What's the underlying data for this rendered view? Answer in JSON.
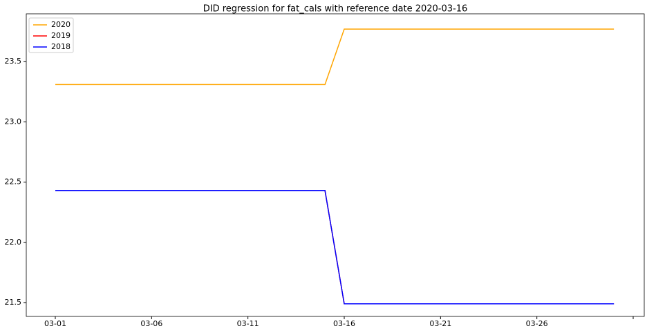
{
  "chart_data": {
    "type": "line",
    "title": "DID regression for fat_cals with reference date 2020-03-16",
    "categories": [
      "03-01",
      null,
      null,
      null,
      null,
      "03-06",
      null,
      null,
      null,
      null,
      "03-11",
      null,
      null,
      null,
      null,
      "03-16",
      null,
      null,
      null,
      null,
      "03-21",
      null,
      null,
      null,
      null,
      "03-26",
      null,
      null,
      null,
      null,
      null
    ],
    "series": [
      {
        "name": "2020",
        "color": "#ffa500",
        "values": [
          23.31,
          23.31,
          23.31,
          23.31,
          23.31,
          23.31,
          23.31,
          23.31,
          23.31,
          23.31,
          23.31,
          23.31,
          23.31,
          23.31,
          23.31,
          23.77,
          23.77,
          23.77,
          23.77,
          23.77,
          23.77,
          23.77,
          23.77,
          23.77,
          23.77,
          23.77,
          23.77,
          23.77,
          23.77,
          23.77,
          null
        ]
      },
      {
        "name": "2019",
        "color": "#ff0000",
        "values": [
          22.43,
          22.43,
          22.43,
          22.43,
          22.43,
          22.43,
          22.43,
          22.43,
          22.43,
          22.43,
          22.43,
          22.43,
          22.43,
          22.43,
          22.43,
          21.49,
          21.49,
          21.49,
          21.49,
          21.49,
          21.49,
          21.49,
          21.49,
          21.49,
          21.49,
          21.49,
          21.49,
          21.49,
          21.49,
          21.49,
          null
        ]
      },
      {
        "name": "2018",
        "color": "#0000ff",
        "values": [
          22.43,
          22.43,
          22.43,
          22.43,
          22.43,
          22.43,
          22.43,
          22.43,
          22.43,
          22.43,
          22.43,
          22.43,
          22.43,
          22.43,
          22.43,
          21.49,
          21.49,
          21.49,
          21.49,
          21.49,
          21.49,
          21.49,
          21.49,
          21.49,
          21.49,
          21.49,
          21.49,
          21.49,
          21.49,
          21.49,
          null
        ]
      }
    ],
    "ylim": [
      21.385,
      23.897
    ],
    "yticks": [
      {
        "value": 21.5,
        "label": "21.5"
      },
      {
        "value": 22,
        "label": "22.0"
      },
      {
        "value": 22.5,
        "label": "22.5"
      },
      {
        "value": 23,
        "label": "23.0"
      },
      {
        "value": 23.5,
        "label": "23.5"
      }
    ],
    "legend": "upper left"
  }
}
